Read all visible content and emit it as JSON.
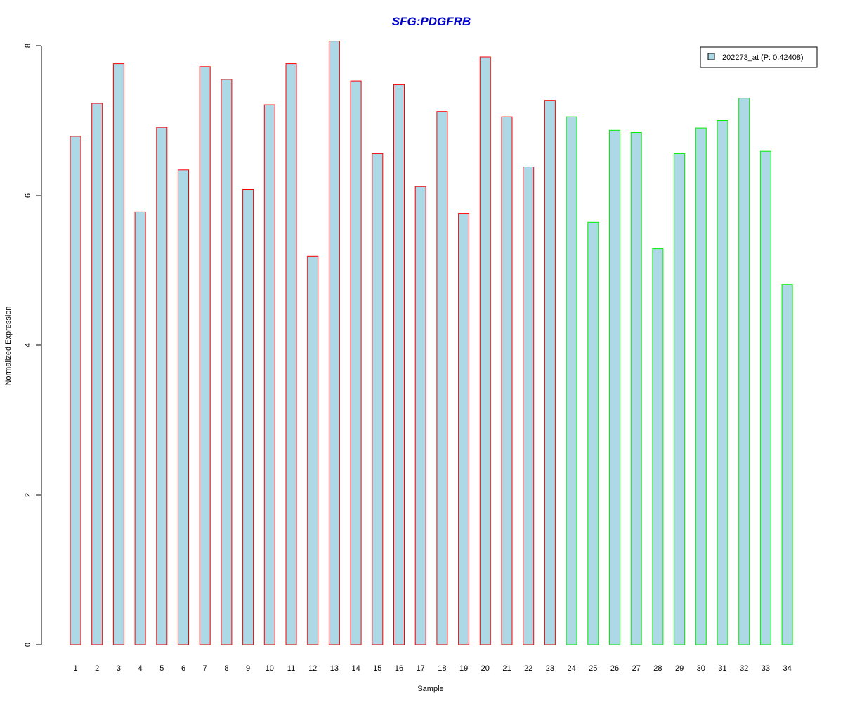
{
  "chart_data": {
    "type": "bar",
    "title": "SFG:PDGFRB",
    "xlabel": "Sample",
    "ylabel": "Normalized Expression",
    "categories": [
      "1",
      "2",
      "3",
      "4",
      "5",
      "6",
      "7",
      "8",
      "9",
      "10",
      "11",
      "12",
      "13",
      "14",
      "15",
      "16",
      "17",
      "18",
      "19",
      "20",
      "21",
      "22",
      "23",
      "24",
      "25",
      "26",
      "27",
      "28",
      "29",
      "30",
      "31",
      "32",
      "33",
      "34"
    ],
    "series": [
      {
        "name": "202273_at (P: 0.42408)",
        "values": [
          6.79,
          7.23,
          7.76,
          5.78,
          6.91,
          6.34,
          7.72,
          7.55,
          6.08,
          7.21,
          7.76,
          5.19,
          8.06,
          7.53,
          6.56,
          7.48,
          6.12,
          7.12,
          5.76,
          7.85,
          7.05,
          6.38,
          7.27,
          7.05,
          5.64,
          6.87,
          6.84,
          5.29,
          6.56,
          6.9,
          7.0,
          7.3,
          6.59,
          4.81
        ]
      }
    ],
    "groups": [
      {
        "samples": "1-23",
        "border_color": "#ff0000"
      },
      {
        "samples": "24-34",
        "border_color": "#00ee00"
      }
    ],
    "y_ticks": [
      0,
      2,
      4,
      6,
      8
    ],
    "ylim": [
      0,
      8.06
    ],
    "grid": false,
    "legend_position": "top-right",
    "colors": {
      "bar_fill": "#add8e6",
      "title": "#0000cd",
      "group1_border": "#ff0000",
      "group2_border": "#00ee00"
    }
  }
}
